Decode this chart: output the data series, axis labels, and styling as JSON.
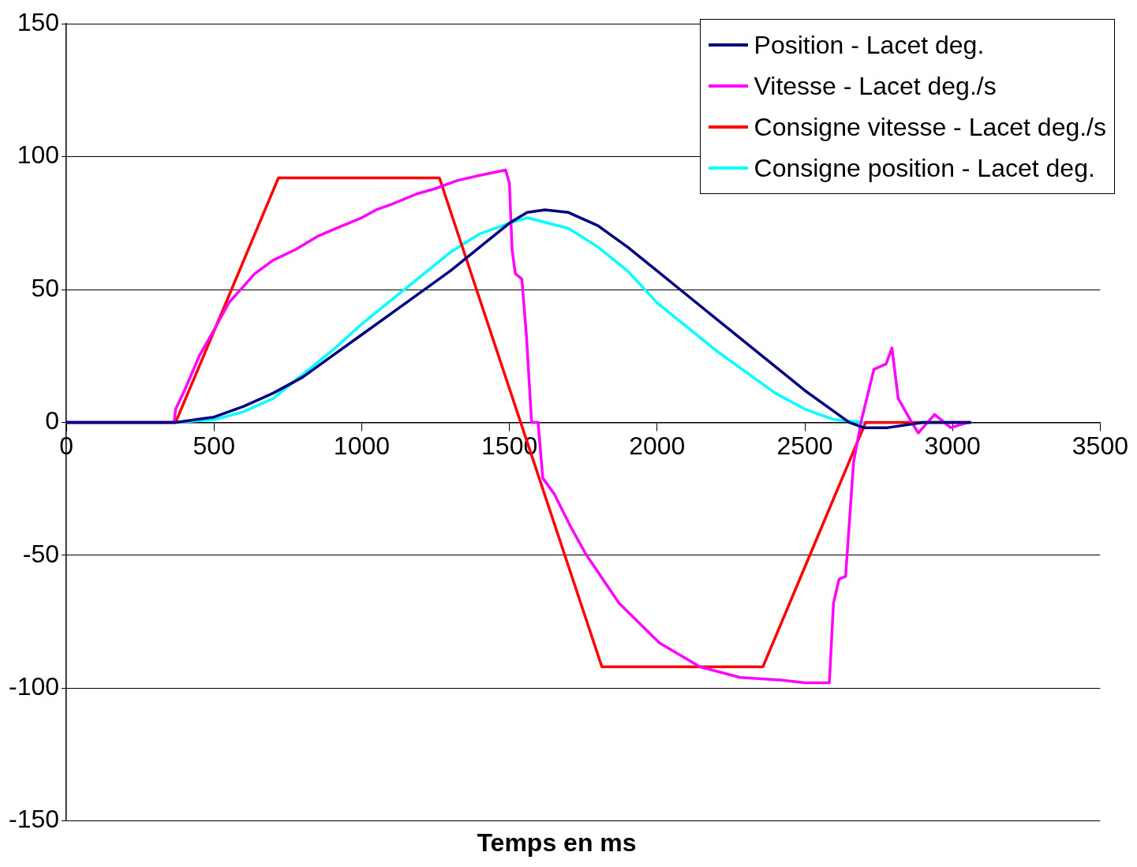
{
  "chart_data": {
    "type": "line",
    "xlabel": "Temps en ms",
    "xlim": [
      0,
      3500
    ],
    "xticks": [
      0,
      500,
      1000,
      1500,
      2000,
      2500,
      3000,
      3500
    ],
    "ylim": [
      -150,
      150
    ],
    "yticks": [
      -150,
      -100,
      -50,
      0,
      50,
      100,
      150
    ],
    "grid": "y",
    "legend": "top right",
    "marker": "none",
    "line_style": "solid",
    "series": [
      {
        "name": "Position - Lacet deg.",
        "color": "#000080",
        "x": [
          0,
          370,
          500,
          600,
          700,
          800,
          900,
          1000,
          1100,
          1200,
          1300,
          1400,
          1500,
          1560,
          1620,
          1700,
          1800,
          1900,
          2000,
          2100,
          2200,
          2300,
          2400,
          2500,
          2600,
          2650,
          2700,
          2780,
          2900,
          3060
        ],
        "values": [
          0,
          0,
          2,
          6,
          11,
          17,
          25,
          33,
          41,
          49,
          57,
          66,
          75,
          79,
          80,
          79,
          74,
          66,
          57,
          48,
          39,
          30,
          21,
          12,
          4,
          0,
          -2,
          -2,
          0,
          0
        ]
      },
      {
        "name": "Vitesse - Lacet deg./s",
        "color": "#ff00ff",
        "x": [
          0,
          365,
          370,
          400,
          450,
          501,
          550,
          638,
          700,
          775,
          850,
          912,
          1000,
          1049,
          1100,
          1186,
          1250,
          1323,
          1400,
          1487,
          1500,
          1509,
          1520,
          1542,
          1558,
          1575,
          1597,
          1613,
          1652,
          1706,
          1761,
          1871,
          2008,
          2145,
          2281,
          2418,
          2500,
          2583,
          2597,
          2616,
          2638,
          2665,
          2692,
          2734,
          2775,
          2795,
          2816,
          2857,
          2884,
          2939,
          2994,
          3054
        ],
        "values": [
          0,
          0,
          5,
          12,
          25,
          35,
          45,
          56,
          61,
          65,
          70,
          73,
          77,
          80,
          82,
          86,
          88,
          91,
          93,
          95,
          90,
          65,
          56,
          54,
          32,
          0,
          0,
          -21,
          -27,
          -39,
          -50,
          -68,
          -83,
          -92,
          -96,
          -97,
          -98,
          -98,
          -68,
          -59,
          -58,
          -15,
          1,
          20,
          22,
          28,
          9,
          1,
          -4,
          3,
          -2,
          0
        ]
      },
      {
        "name": "Consigne vitesse - Lacet deg./s",
        "color": "#ff0000",
        "x": [
          0,
          370,
          718,
          1263,
          1813,
          2358,
          2706,
          3060
        ],
        "values": [
          0,
          0,
          92,
          92,
          -92,
          -92,
          0,
          0
        ]
      },
      {
        "name": "Consigne position - Lacet deg.",
        "color": "#00ffff",
        "x": [
          0,
          370,
          500,
          600,
          700,
          800,
          900,
          1000,
          1100,
          1200,
          1300,
          1400,
          1500,
          1560,
          1700,
          1800,
          1900,
          2000,
          2100,
          2200,
          2300,
          2400,
          2500,
          2600,
          2700,
          3060
        ],
        "values": [
          0,
          0,
          1,
          4,
          9,
          18,
          27,
          37,
          46,
          55,
          64,
          71,
          75,
          77,
          73,
          66,
          57,
          45,
          36,
          27,
          19,
          11,
          5,
          1,
          0,
          0
        ]
      }
    ]
  }
}
